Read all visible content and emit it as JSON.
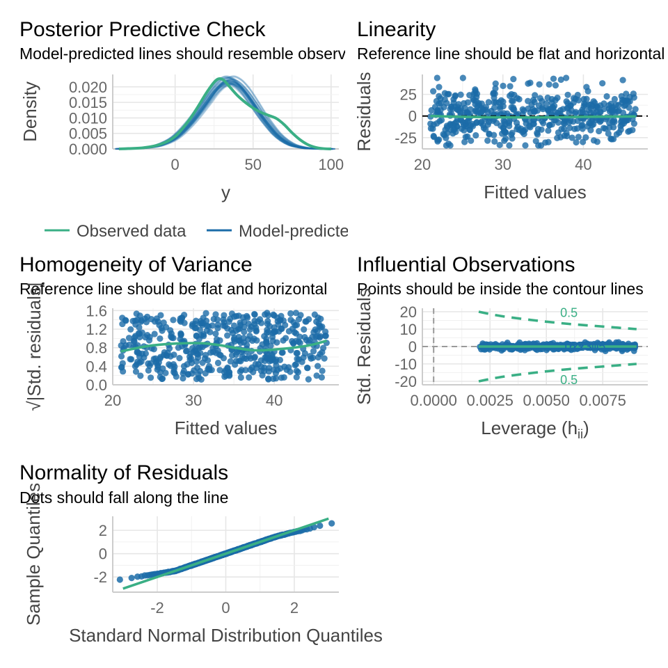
{
  "colors": {
    "observed": "#3aaf85",
    "predicted": "#1b6ca8",
    "points": "#1b6ca8",
    "reference": "#3aaf85"
  },
  "chart_data": [
    {
      "id": "ppc",
      "type": "line",
      "title": "Posterior Predictive Check",
      "subtitle": "Model-predicted lines should resemble observed data line",
      "xlabel": "y",
      "ylabel": "Density",
      "xlim": [
        -40,
        105
      ],
      "ylim": [
        0,
        0.024
      ],
      "xticks": [
        0,
        50,
        100
      ],
      "yticks": [
        0.0,
        0.005,
        0.01,
        0.015,
        0.02
      ],
      "ytick_labels": [
        "0.000",
        "0.005",
        "0.010",
        "0.015",
        "0.020"
      ],
      "legend": {
        "position": "bottom",
        "entries": [
          "Observed data",
          "Model-predicted data"
        ]
      },
      "series": [
        {
          "name": "Observed data",
          "x": [
            -36,
            -30,
            -20,
            -10,
            0,
            10,
            20,
            25,
            28,
            31,
            35,
            40,
            45,
            50,
            55,
            60,
            65,
            70,
            75,
            80,
            85,
            90,
            95,
            100
          ],
          "y": [
            0.0,
            0.0001,
            0.0004,
            0.0014,
            0.004,
            0.01,
            0.018,
            0.0215,
            0.0226,
            0.0222,
            0.02,
            0.0172,
            0.015,
            0.0132,
            0.0118,
            0.0108,
            0.0098,
            0.0078,
            0.0052,
            0.003,
            0.0014,
            0.0005,
            0.0001,
            0.0
          ]
        },
        {
          "name": "Model-predicted data",
          "x": [
            -36,
            -30,
            -20,
            -10,
            0,
            10,
            20,
            25,
            30,
            35,
            40,
            45,
            50,
            55,
            60,
            65,
            70,
            75,
            80,
            85,
            90,
            95,
            100
          ],
          "y": [
            0.0,
            0.0001,
            0.0003,
            0.0012,
            0.0036,
            0.0085,
            0.015,
            0.0185,
            0.021,
            0.022,
            0.021,
            0.0185,
            0.015,
            0.0112,
            0.0078,
            0.0048,
            0.0027,
            0.0013,
            0.0006,
            0.0002,
            0.0001,
            0.0,
            0.0
          ]
        }
      ]
    },
    {
      "id": "lin",
      "type": "scatter",
      "title": "Linearity",
      "subtitle": "Reference line should be flat and horizontal",
      "xlabel": "Fitted values",
      "ylabel": "Residuals",
      "xlim": [
        20,
        48
      ],
      "ylim": [
        -38,
        48
      ],
      "xticks": [
        20,
        30,
        40
      ],
      "yticks": [
        -25,
        0,
        25
      ],
      "reference_y": 0,
      "fit": {
        "x": [
          21,
          25,
          30,
          35,
          40,
          46.5
        ],
        "y": [
          0,
          -1,
          -1.5,
          -1.5,
          -1,
          -0.5
        ]
      },
      "points": {
        "n": 500,
        "x_range": [
          21,
          46.5
        ],
        "y_spread": 40
      }
    },
    {
      "id": "hov",
      "type": "scatter",
      "title": "Homogeneity of Variance",
      "subtitle": "Reference line should be flat and horizontal",
      "xlabel": "Fitted values",
      "ylabel": "√|Std. residuals|",
      "xlim": [
        20,
        48
      ],
      "ylim": [
        0,
        1.65
      ],
      "xticks": [
        20,
        30,
        40
      ],
      "yticks": [
        0.0,
        0.4,
        0.8,
        1.2,
        1.6
      ],
      "ytick_labels": [
        "0.0",
        "0.4",
        "0.8",
        "1.2",
        "1.6"
      ],
      "fit": {
        "x": [
          21,
          25,
          30,
          33,
          37,
          40,
          44,
          46.5
        ],
        "y": [
          0.72,
          0.85,
          0.9,
          0.86,
          0.75,
          0.76,
          0.84,
          0.95
        ]
      },
      "points": {
        "n": 500,
        "x_range": [
          21,
          46.5
        ],
        "y_range": [
          0.1,
          1.55
        ]
      }
    },
    {
      "id": "inf",
      "type": "scatter",
      "title": "Influential Observations",
      "subtitle": "Points should be inside the contour lines",
      "xlabel": "Leverage (h",
      "xlabel_sub": "ii",
      "xlabel_end": ")",
      "ylabel": "Std. Residuals",
      "xlim": [
        -0.0005,
        0.0095
      ],
      "ylim": [
        -22,
        22
      ],
      "xticks": [
        0.0,
        0.0025,
        0.005,
        0.0075
      ],
      "xtick_labels": [
        "0.0000",
        "0.0025",
        "0.0050",
        "0.0075"
      ],
      "yticks": [
        -20,
        -10,
        0,
        10,
        20
      ],
      "contour_label": "0.5",
      "contours": {
        "upper": {
          "x": [
            0.002,
            0.003,
            0.0045,
            0.006,
            0.0075,
            0.009
          ],
          "y": [
            20,
            17.5,
            15,
            13,
            11.5,
            10
          ]
        },
        "lower": {
          "x": [
            0.002,
            0.003,
            0.0045,
            0.006,
            0.0075,
            0.009
          ],
          "y": [
            -20,
            -17.5,
            -15,
            -13,
            -11.5,
            -10
          ]
        }
      },
      "point_labels": [
        "163",
        "273",
        "2",
        "305",
        "1"
      ],
      "points": {
        "n": 500,
        "x_range": [
          0.002,
          0.009
        ],
        "y_spread": 1.8
      }
    },
    {
      "id": "qq",
      "type": "scatter",
      "title": "Normality of Residuals",
      "subtitle": "Dots should fall along the line",
      "xlabel": "Standard Normal Distribution Quantiles",
      "ylabel": "Sample Quantiles",
      "xlim": [
        -3.3,
        3.3
      ],
      "ylim": [
        -3.3,
        3.2
      ],
      "xticks": [
        -2,
        0,
        2
      ],
      "yticks": [
        -2,
        0,
        2
      ],
      "line": {
        "x": [
          -3,
          3
        ],
        "y": [
          -3,
          3
        ]
      },
      "points": {
        "n": 500
      }
    }
  ]
}
